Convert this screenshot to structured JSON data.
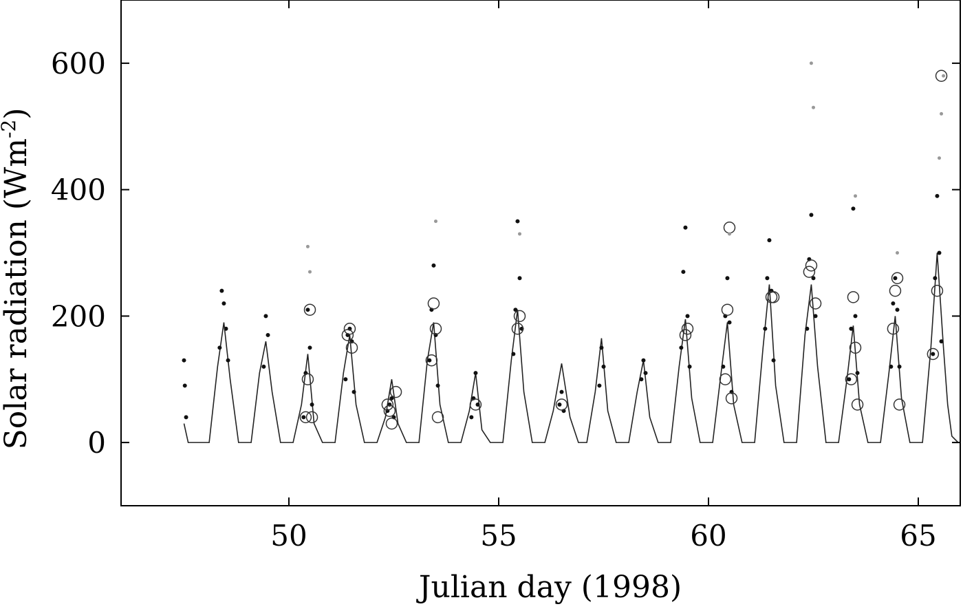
{
  "chart_data": {
    "type": "line",
    "title": "",
    "xlabel": "Julian day (1998)",
    "ylabel": "Solar radiation (Wm",
    "ylabel_sup": "-2",
    "ylabel_close": ")",
    "xlim": [
      46.0,
      66.0
    ],
    "ylim": [
      -100,
      700
    ],
    "xticks": [
      50,
      55,
      60,
      65
    ],
    "xtick_labels": [
      "50",
      "55",
      "60",
      "65"
    ],
    "yticks": [
      0,
      200,
      400,
      600
    ],
    "ytick_labels": [
      "0",
      "200",
      "400",
      "600"
    ],
    "grid": false,
    "legend": "none",
    "series": [
      {
        "style": "line",
        "x": [
          47.5,
          47.6,
          47.8,
          48.1,
          48.3,
          48.45,
          48.6,
          48.8,
          49.1,
          49.3,
          49.45,
          49.6,
          49.8,
          50.1,
          50.3,
          50.45,
          50.6,
          50.8,
          51.1,
          51.3,
          51.45,
          51.6,
          51.8,
          52.1,
          52.3,
          52.45,
          52.6,
          52.8,
          53.1,
          53.3,
          53.45,
          53.6,
          53.8,
          54.1,
          54.3,
          54.45,
          54.6,
          54.8,
          55.1,
          55.3,
          55.45,
          55.6,
          55.8,
          56.1,
          56.3,
          56.5,
          56.7,
          56.9,
          57.1,
          57.3,
          57.45,
          57.6,
          57.8,
          58.1,
          58.3,
          58.45,
          58.6,
          58.8,
          59.1,
          59.3,
          59.45,
          59.6,
          59.8,
          60.1,
          60.3,
          60.45,
          60.6,
          60.8,
          61.1,
          61.3,
          61.45,
          61.6,
          61.8,
          62.1,
          62.3,
          62.45,
          62.6,
          62.8,
          63.1,
          63.3,
          63.45,
          63.6,
          63.8,
          64.1,
          64.3,
          64.45,
          64.6,
          64.8,
          65.1,
          65.3,
          65.45,
          65.6,
          65.7,
          65.8,
          65.95
        ],
        "values": [
          30,
          0,
          0,
          0,
          120,
          190,
          100,
          0,
          0,
          110,
          160,
          80,
          0,
          0,
          60,
          140,
          30,
          0,
          0,
          110,
          170,
          60,
          0,
          0,
          40,
          100,
          30,
          0,
          0,
          130,
          190,
          60,
          0,
          0,
          50,
          110,
          20,
          0,
          0,
          130,
          210,
          80,
          0,
          0,
          50,
          125,
          40,
          0,
          0,
          80,
          165,
          50,
          0,
          0,
          80,
          130,
          40,
          0,
          0,
          120,
          195,
          70,
          0,
          0,
          110,
          190,
          60,
          0,
          0,
          150,
          250,
          90,
          0,
          0,
          170,
          250,
          120,
          0,
          0,
          100,
          185,
          60,
          0,
          0,
          110,
          200,
          70,
          0,
          0,
          150,
          300,
          150,
          60,
          10,
          0
        ]
      },
      {
        "style": "dot",
        "x": [
          47.5,
          47.52,
          47.55,
          48.35,
          48.4,
          48.45,
          48.5,
          48.55,
          49.4,
          49.45,
          49.5,
          50.35,
          50.4,
          50.45,
          50.5,
          50.55,
          51.35,
          51.4,
          51.45,
          51.5,
          51.55,
          52.35,
          52.4,
          52.45,
          52.5,
          53.35,
          53.4,
          53.45,
          53.5,
          53.55,
          54.35,
          54.4,
          54.45,
          54.5,
          55.35,
          55.4,
          55.45,
          55.5,
          55.55,
          56.45,
          56.5,
          56.55,
          57.4,
          57.45,
          57.5,
          58.4,
          58.45,
          58.5,
          59.35,
          59.4,
          59.45,
          59.5,
          59.55,
          60.35,
          60.4,
          60.45,
          60.5,
          60.55,
          61.35,
          61.4,
          61.45,
          61.5,
          61.55,
          62.35,
          62.4,
          62.45,
          62.5,
          62.55,
          63.35,
          63.4,
          63.45,
          63.5,
          63.55,
          64.35,
          64.4,
          64.45,
          64.5,
          64.55,
          65.35,
          65.4,
          65.45,
          65.5,
          65.55
        ],
        "values": [
          130,
          90,
          40,
          150,
          240,
          220,
          180,
          130,
          120,
          200,
          170,
          40,
          110,
          210,
          150,
          60,
          100,
          170,
          180,
          160,
          80,
          50,
          60,
          70,
          40,
          130,
          210,
          280,
          170,
          90,
          40,
          70,
          110,
          60,
          140,
          210,
          350,
          260,
          180,
          60,
          80,
          50,
          90,
          150,
          120,
          100,
          130,
          110,
          150,
          270,
          340,
          200,
          120,
          120,
          200,
          260,
          190,
          80,
          180,
          260,
          320,
          240,
          130,
          180,
          290,
          360,
          260,
          200,
          100,
          180,
          370,
          200,
          110,
          120,
          220,
          260,
          210,
          120,
          140,
          260,
          390,
          300,
          160
        ]
      },
      {
        "style": "circle",
        "x": [
          50.4,
          50.45,
          50.5,
          50.55,
          51.4,
          51.45,
          51.5,
          52.35,
          52.4,
          52.45,
          52.55,
          53.4,
          53.45,
          53.5,
          53.55,
          54.45,
          55.45,
          55.5,
          56.5,
          59.45,
          59.5,
          60.4,
          60.45,
          60.5,
          60.55,
          61.5,
          61.55,
          62.4,
          62.45,
          62.55,
          63.4,
          63.45,
          63.5,
          63.55,
          64.4,
          64.45,
          64.5,
          64.55,
          65.35,
          65.45,
          65.55
        ],
        "values": [
          40,
          100,
          210,
          40,
          170,
          180,
          150,
          60,
          50,
          30,
          80,
          130,
          220,
          180,
          40,
          60,
          180,
          200,
          60,
          170,
          180,
          100,
          210,
          340,
          70,
          230,
          230,
          270,
          280,
          220,
          100,
          230,
          150,
          60,
          180,
          240,
          260,
          60,
          140,
          240,
          580
        ]
      },
      {
        "style": "faint",
        "x": [
          50.45,
          50.5,
          53.5,
          55.5,
          60.5,
          62.45,
          62.5,
          63.5,
          64.5,
          65.5,
          65.55,
          65.6
        ],
        "values": [
          310,
          270,
          350,
          330,
          330,
          600,
          530,
          390,
          300,
          450,
          520,
          580
        ]
      }
    ]
  }
}
